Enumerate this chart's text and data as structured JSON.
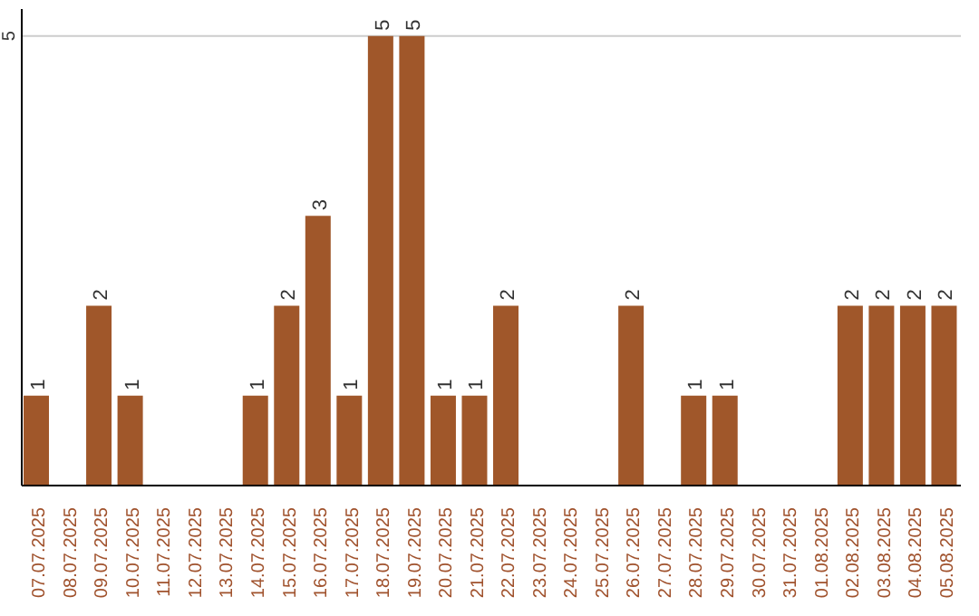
{
  "chart_data": {
    "type": "bar",
    "categories": [
      "07.07.2025",
      "08.07.2025",
      "09.07.2025",
      "10.07.2025",
      "11.07.2025",
      "12.07.2025",
      "13.07.2025",
      "14.07.2025",
      "15.07.2025",
      "16.07.2025",
      "17.07.2025",
      "18.07.2025",
      "19.07.2025",
      "20.07.2025",
      "21.07.2025",
      "22.07.2025",
      "23.07.2025",
      "24.07.2025",
      "25.07.2025",
      "26.07.2025",
      "27.07.2025",
      "28.07.2025",
      "29.07.2025",
      "30.07.2025",
      "31.07.2025",
      "01.08.2025",
      "02.08.2025",
      "03.08.2025",
      "04.08.2025",
      "05.08.2025"
    ],
    "values": [
      1,
      0,
      2,
      1,
      0,
      0,
      0,
      1,
      2,
      3,
      1,
      5,
      5,
      1,
      1,
      2,
      0,
      0,
      0,
      2,
      0,
      1,
      1,
      0,
      0,
      0,
      2,
      2,
      2,
      2
    ],
    "value_labels": [
      "1",
      null,
      "2",
      "1",
      null,
      null,
      null,
      "1",
      "2",
      "3",
      "1",
      "5",
      "5",
      "1",
      "1",
      "2",
      null,
      null,
      null,
      "2",
      null,
      "1",
      "1",
      null,
      null,
      null,
      "2",
      "2",
      "2",
      "2"
    ],
    "color": "#a0572a",
    "ylim": [
      0,
      5.3
    ],
    "yticks": [
      5
    ],
    "grid": "y"
  }
}
